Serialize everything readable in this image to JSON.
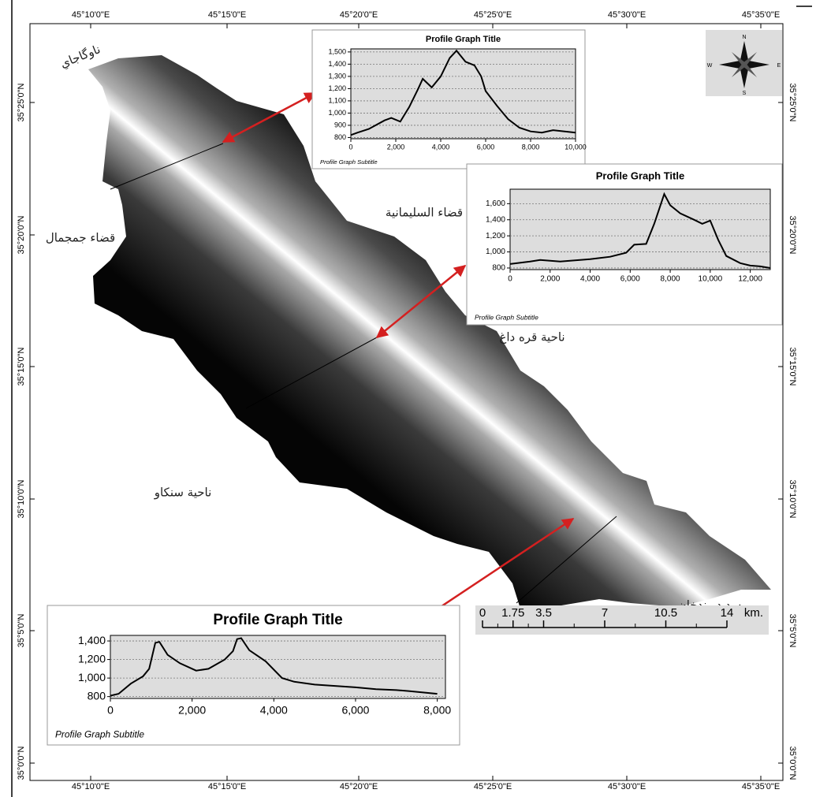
{
  "map": {
    "lon_labels": [
      "45°10'0\"E",
      "45°15'0\"E",
      "45°20'0\"E",
      "45°25'0\"E",
      "45°30'0\"E",
      "45°35'0\"E"
    ],
    "lat_labels": [
      "35°25'0\"N",
      "35°20'0\"N",
      "35°15'0\"N",
      "35°10'0\"N",
      "35°5'0\"N",
      "35°0'0\"N"
    ],
    "places": [
      "ناوگاجاي",
      "قضاء السليمانية",
      "قضاء جمجمال",
      "ناحية قره داغ",
      "ناحية سنكاو",
      "سد دربندخان"
    ],
    "north_arrow": {
      "n": "N",
      "s": "S",
      "e": "E",
      "w": "W"
    },
    "scale_bar": {
      "ticks": [
        0,
        1.75,
        3.5,
        7,
        10.5,
        14
      ],
      "unit": "km."
    }
  },
  "chart_data": [
    {
      "type": "line",
      "title": "Profile Graph Title",
      "subtitle": "Profile Graph Subtitle",
      "x": [
        0,
        300,
        800,
        1500,
        1800,
        2200,
        2600,
        3000,
        3200,
        3600,
        4000,
        4400,
        4700,
        5100,
        5500,
        5800,
        6000,
        6500,
        7000,
        7500,
        8000,
        8500,
        9000,
        10000
      ],
      "values": [
        820,
        840,
        870,
        940,
        960,
        930,
        1050,
        1200,
        1280,
        1210,
        1300,
        1450,
        1510,
        1420,
        1390,
        1300,
        1180,
        1060,
        950,
        880,
        850,
        840,
        860,
        840
      ],
      "color": "#000000",
      "xlim": [
        0,
        10000
      ],
      "ylim": [
        790,
        1525
      ],
      "xticks": [
        0,
        {
          "value": 2000,
          "label": "2,000"
        },
        {
          "value": 4000,
          "label": "4,000"
        },
        {
          "value": 6000,
          "label": "6,000"
        },
        {
          "value": 8000,
          "label": "8,000"
        },
        {
          "value": 10000,
          "label": "10,000"
        }
      ],
      "yticks": [
        800,
        900,
        {
          "value": 1000,
          "label": "1,000"
        },
        {
          "value": 1100,
          "label": "1,100"
        },
        {
          "value": 1200,
          "label": "1,200"
        },
        {
          "value": 1300,
          "label": "1,300"
        },
        {
          "value": 1400,
          "label": "1,400"
        },
        {
          "value": 1500,
          "label": "1,500"
        }
      ],
      "grid": true
    },
    {
      "type": "line",
      "title": "Profile Graph Title",
      "subtitle": "Profile Graph Subtitle",
      "x": [
        0,
        1000,
        1500,
        2500,
        4000,
        5000,
        5800,
        6200,
        6800,
        7200,
        7700,
        8000,
        8500,
        9200,
        9600,
        10000,
        10400,
        10800,
        11500,
        12000,
        12500,
        13000
      ],
      "values": [
        850,
        880,
        900,
        880,
        910,
        940,
        990,
        1090,
        1100,
        1350,
        1720,
        1580,
        1480,
        1400,
        1350,
        1390,
        1150,
        950,
        860,
        830,
        820,
        800
      ],
      "color": "#000000",
      "xlim": [
        0,
        13000
      ],
      "ylim": [
        780,
        1780
      ],
      "xticks": [
        0,
        {
          "value": 2000,
          "label": "2,000"
        },
        {
          "value": 4000,
          "label": "4,000"
        },
        {
          "value": 6000,
          "label": "6,000"
        },
        {
          "value": 8000,
          "label": "8,000"
        },
        {
          "value": 10000,
          "label": "10,000"
        },
        {
          "value": 12000,
          "label": "12,000"
        }
      ],
      "yticks": [
        800,
        {
          "value": 1000,
          "label": "1,000"
        },
        {
          "value": 1200,
          "label": "1,200"
        },
        {
          "value": 1400,
          "label": "1,400"
        },
        {
          "value": 1600,
          "label": "1,600"
        }
      ],
      "grid": true
    },
    {
      "type": "line",
      "title": "Profile Graph Title",
      "subtitle": "Profile Graph Subtitle",
      "x": [
        0,
        200,
        500,
        800,
        950,
        1100,
        1200,
        1400,
        1700,
        2100,
        2400,
        2800,
        3000,
        3100,
        3200,
        3400,
        3800,
        4200,
        4500,
        5000,
        6000,
        6500,
        7000,
        7300,
        8000
      ],
      "values": [
        810,
        830,
        940,
        1020,
        1100,
        1380,
        1390,
        1250,
        1160,
        1080,
        1100,
        1200,
        1290,
        1420,
        1430,
        1300,
        1180,
        1000,
        960,
        930,
        900,
        880,
        870,
        860,
        830
      ],
      "color": "#000000",
      "xlim": [
        0,
        8200
      ],
      "ylim": [
        780,
        1460
      ],
      "xticks": [
        0,
        {
          "value": 2000,
          "label": "2,000"
        },
        {
          "value": 4000,
          "label": "4,000"
        },
        {
          "value": 6000,
          "label": "6,000"
        },
        {
          "value": 8000,
          "label": "8,000"
        }
      ],
      "yticks": [
        800,
        {
          "value": 1000,
          "label": "1,000"
        },
        {
          "value": 1200,
          "label": "1,200"
        },
        {
          "value": 1400,
          "label": "1,400"
        }
      ],
      "grid": true
    }
  ]
}
